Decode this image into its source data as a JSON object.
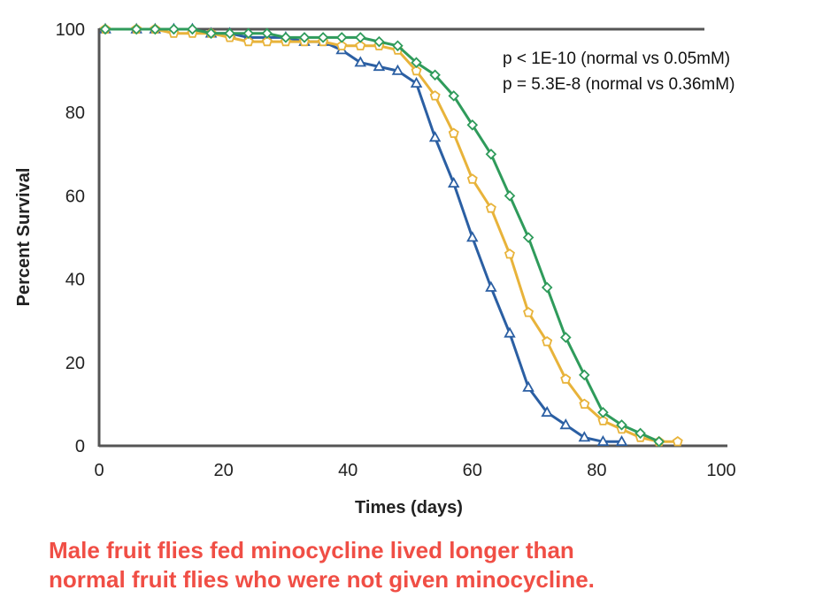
{
  "chart_data": {
    "type": "line",
    "xlabel": "Times (days)",
    "ylabel": "Percent Survival",
    "xlim": [
      0,
      100
    ],
    "ylim": [
      0,
      100
    ],
    "xticks": [
      "0",
      "20",
      "40",
      "60",
      "80",
      "100"
    ],
    "yticks": [
      "0",
      "20",
      "40",
      "60",
      "80",
      "100"
    ],
    "grid": false,
    "annotations": [
      "p < 1E-10 (normal vs 0.05mM)",
      "p = 5.3E-8 (normal vs 0.36mM)"
    ],
    "series": [
      {
        "color": "#2b5fa3",
        "marker": "triangle",
        "x": [
          1,
          6,
          9,
          12,
          15,
          18,
          21,
          24,
          27,
          30,
          33,
          36,
          39,
          42,
          45,
          48,
          51,
          54,
          57,
          60,
          63,
          66,
          69,
          72,
          75,
          78,
          81,
          84
        ],
        "y": [
          100,
          100,
          100,
          100,
          100,
          99,
          99,
          98,
          98,
          98,
          97,
          97,
          95,
          92,
          91,
          90,
          87,
          74,
          63,
          50,
          38,
          27,
          14,
          8,
          5,
          2,
          1,
          1
        ]
      },
      {
        "color": "#e8b33a",
        "marker": "pentagon",
        "x": [
          1,
          6,
          9,
          12,
          15,
          18,
          21,
          24,
          27,
          30,
          33,
          36,
          39,
          42,
          45,
          48,
          51,
          54,
          57,
          60,
          63,
          66,
          69,
          72,
          75,
          78,
          81,
          84,
          87,
          90,
          93
        ],
        "y": [
          100,
          100,
          100,
          99,
          99,
          99,
          98,
          97,
          97,
          97,
          97,
          97,
          96,
          96,
          96,
          95,
          90,
          84,
          75,
          64,
          57,
          46,
          32,
          25,
          16,
          10,
          6,
          4,
          2,
          1,
          1
        ]
      },
      {
        "color": "#2f9b5b",
        "marker": "diamond",
        "x": [
          1,
          6,
          9,
          12,
          15,
          18,
          21,
          24,
          27,
          30,
          33,
          36,
          39,
          42,
          45,
          48,
          51,
          54,
          57,
          60,
          63,
          66,
          69,
          72,
          75,
          78,
          81,
          84,
          87,
          90
        ],
        "y": [
          100,
          100,
          100,
          100,
          100,
          99,
          99,
          99,
          99,
          98,
          98,
          98,
          98,
          98,
          97,
          96,
          92,
          89,
          84,
          77,
          70,
          60,
          50,
          38,
          26,
          17,
          8,
          5,
          3,
          1
        ]
      }
    ]
  },
  "caption": {
    "line1": "Male fruit flies fed minocycline lived longer than",
    "line2": "normal fruit flies who were not given minocycline."
  }
}
